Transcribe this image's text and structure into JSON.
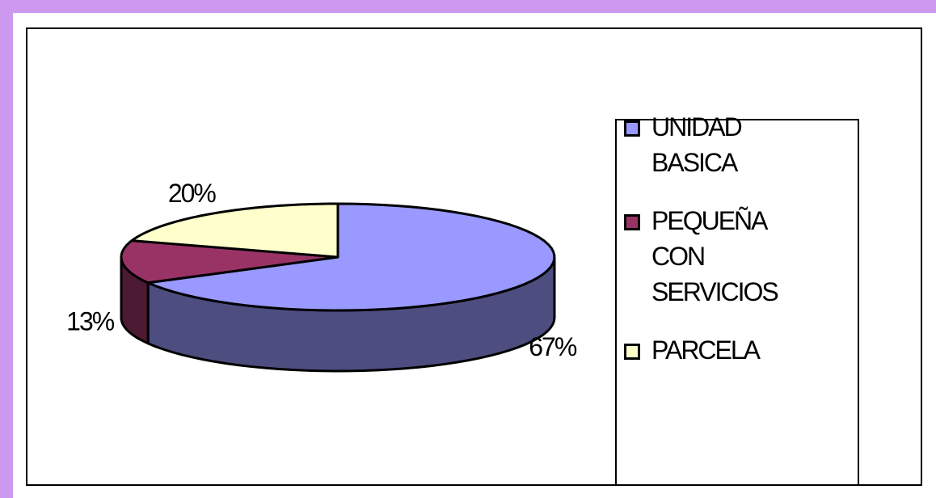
{
  "chart_data": {
    "type": "pie3d",
    "categories": [
      "UNIDAD BASICA",
      "PEQUEÑA CON SERVICIOS",
      "PARCELA"
    ],
    "values": [
      67,
      13,
      20
    ],
    "value_labels": [
      "67%",
      "13%",
      "20%"
    ],
    "colors": [
      "#9999ff",
      "#993366",
      "#ffffcc"
    ],
    "legend": "right"
  }
}
